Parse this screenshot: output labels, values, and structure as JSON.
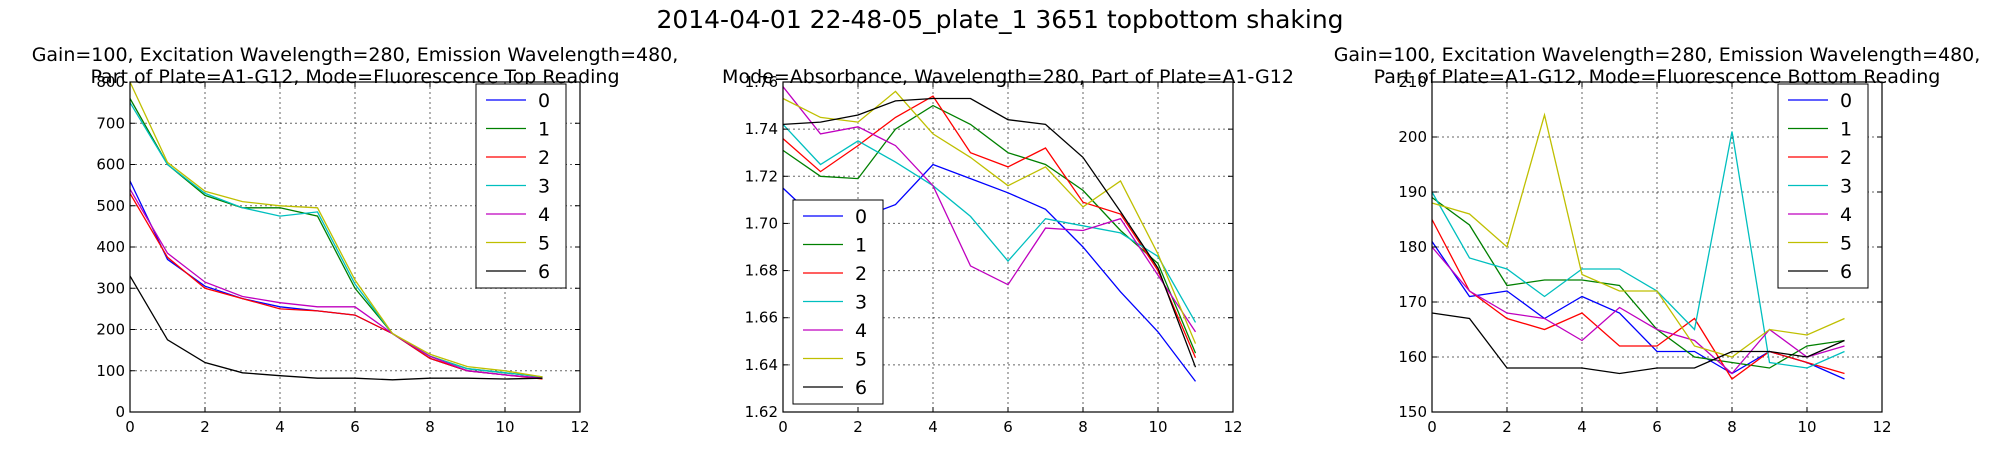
{
  "suptitle": "2014-04-01 22-48-05_plate_1 3651 topbottom shaking",
  "colors": [
    "#0000ff",
    "#008000",
    "#ff0000",
    "#00bfbf",
    "#bf00bf",
    "#bfbf00",
    "#000000"
  ],
  "chart_data": [
    {
      "type": "line",
      "title_line1": "Gain=100, Excitation Wavelength=280, Emission Wavelength=480,",
      "title_line2": "Part of Plate=A1-G12, Mode=Fluorescence Top Reading",
      "xlim": [
        0,
        12
      ],
      "ylim": [
        0,
        800
      ],
      "xticks": [
        0,
        2,
        4,
        6,
        8,
        10,
        12
      ],
      "yticks": [
        0,
        100,
        200,
        300,
        400,
        500,
        600,
        700,
        800
      ],
      "grid": true,
      "legend_position": "top-right",
      "x": [
        0,
        1,
        2,
        3,
        4,
        5,
        6,
        7,
        8,
        9,
        10,
        11
      ],
      "series": [
        {
          "name": "0",
          "values": [
            560,
            370,
            305,
            275,
            255,
            245,
            235,
            190,
            130,
            100,
            90,
            82
          ]
        },
        {
          "name": "1",
          "values": [
            760,
            600,
            525,
            495,
            495,
            475,
            300,
            190,
            135,
            105,
            95,
            85
          ]
        },
        {
          "name": "2",
          "values": [
            530,
            375,
            300,
            275,
            250,
            245,
            235,
            190,
            130,
            100,
            90,
            80
          ]
        },
        {
          "name": "3",
          "values": [
            750,
            600,
            530,
            495,
            475,
            485,
            310,
            190,
            135,
            105,
            95,
            85
          ]
        },
        {
          "name": "4",
          "values": [
            540,
            385,
            315,
            280,
            265,
            255,
            255,
            190,
            135,
            100,
            90,
            82
          ]
        },
        {
          "name": "5",
          "values": [
            800,
            605,
            535,
            510,
            500,
            495,
            320,
            190,
            140,
            110,
            100,
            85
          ]
        },
        {
          "name": "6",
          "values": [
            330,
            175,
            120,
            95,
            88,
            82,
            82,
            78,
            82,
            82,
            80,
            82
          ]
        }
      ]
    },
    {
      "type": "line",
      "title_line1": "",
      "title_line2": "Mode=Absorbance, Wavelength=280, Part of Plate=A1-G12",
      "xlim": [
        0,
        12
      ],
      "ylim": [
        1.62,
        1.76
      ],
      "xticks": [
        0,
        2,
        4,
        6,
        8,
        10,
        12
      ],
      "yticks": [
        1.62,
        1.64,
        1.66,
        1.68,
        1.7,
        1.72,
        1.74,
        1.76
      ],
      "ytick_decimals": 2,
      "grid": true,
      "legend_position": "bottom-left",
      "x": [
        0,
        1,
        2,
        3,
        4,
        5,
        6,
        7,
        8,
        9,
        10,
        11
      ],
      "series": [
        {
          "name": "0",
          "values": [
            1.715,
            1.7,
            1.702,
            1.708,
            1.725,
            1.719,
            1.713,
            1.706,
            1.69,
            1.671,
            1.654,
            1.633
          ]
        },
        {
          "name": "1",
          "values": [
            1.731,
            1.72,
            1.719,
            1.74,
            1.75,
            1.742,
            1.73,
            1.725,
            1.714,
            1.697,
            1.683,
            1.645
          ]
        },
        {
          "name": "2",
          "values": [
            1.736,
            1.722,
            1.733,
            1.745,
            1.754,
            1.73,
            1.724,
            1.732,
            1.709,
            1.704,
            1.68,
            1.643
          ]
        },
        {
          "name": "3",
          "values": [
            1.742,
            1.725,
            1.735,
            1.726,
            1.716,
            1.703,
            1.684,
            1.702,
            1.699,
            1.696,
            1.686,
            1.658
          ]
        },
        {
          "name": "4",
          "values": [
            1.758,
            1.738,
            1.741,
            1.733,
            1.716,
            1.682,
            1.674,
            1.698,
            1.697,
            1.702,
            1.678,
            1.654
          ]
        },
        {
          "name": "5",
          "values": [
            1.753,
            1.745,
            1.743,
            1.756,
            1.738,
            1.728,
            1.716,
            1.724,
            1.707,
            1.718,
            1.687,
            1.649
          ]
        },
        {
          "name": "6",
          "values": [
            1.742,
            1.743,
            1.746,
            1.752,
            1.753,
            1.753,
            1.744,
            1.742,
            1.728,
            1.705,
            1.681,
            1.639
          ]
        }
      ]
    },
    {
      "type": "line",
      "title_line1": "Gain=100, Excitation Wavelength=280, Emission Wavelength=480,",
      "title_line2": "Part of Plate=A1-G12, Mode=Fluorescence Bottom Reading",
      "xlim": [
        0,
        12
      ],
      "ylim": [
        150,
        210
      ],
      "xticks": [
        0,
        2,
        4,
        6,
        8,
        10,
        12
      ],
      "yticks": [
        150,
        160,
        170,
        180,
        190,
        200,
        210
      ],
      "grid": true,
      "legend_position": "top-right",
      "x": [
        0,
        1,
        2,
        3,
        4,
        5,
        6,
        7,
        8,
        9,
        10,
        11
      ],
      "series": [
        {
          "name": "0",
          "values": [
            181,
            171,
            172,
            167,
            171,
            168,
            161,
            161,
            157,
            161,
            159,
            156
          ]
        },
        {
          "name": "1",
          "values": [
            189,
            184,
            173,
            174,
            174,
            173,
            165,
            160,
            159,
            158,
            162,
            163
          ]
        },
        {
          "name": "2",
          "values": [
            185,
            172,
            167,
            165,
            168,
            162,
            162,
            167,
            156,
            161,
            159,
            157
          ]
        },
        {
          "name": "3",
          "values": [
            190,
            178,
            176,
            171,
            176,
            176,
            172,
            165,
            201,
            159,
            158,
            161
          ]
        },
        {
          "name": "4",
          "values": [
            180,
            172,
            168,
            167,
            163,
            169,
            165,
            163,
            157,
            165,
            160,
            162
          ]
        },
        {
          "name": "5",
          "values": [
            188,
            186,
            180,
            204,
            175,
            172,
            172,
            162,
            160,
            165,
            164,
            167
          ]
        },
        {
          "name": "6",
          "values": [
            168,
            167,
            158,
            158,
            158,
            157,
            158,
            158,
            161,
            161,
            160,
            163
          ]
        }
      ]
    }
  ]
}
